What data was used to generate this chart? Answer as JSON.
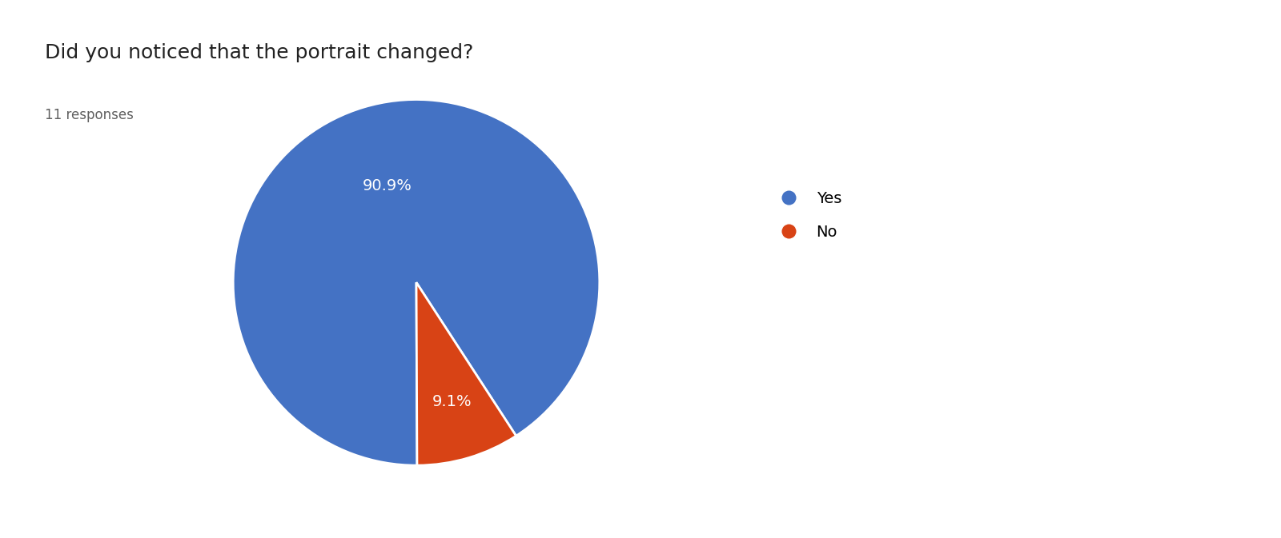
{
  "title": "Did you noticed that the portrait changed?",
  "subtitle": "11 responses",
  "labels": [
    "Yes",
    "No"
  ],
  "values": [
    90.9,
    9.1
  ],
  "colors": [
    "#4472C4",
    "#D84315"
  ],
  "autopct_labels": [
    "90.9%",
    "9.1%"
  ],
  "background_color": "#ffffff",
  "title_fontsize": 18,
  "subtitle_fontsize": 12,
  "legend_fontsize": 14,
  "autopct_fontsize": 14,
  "startangle": -57,
  "counterclock": true
}
